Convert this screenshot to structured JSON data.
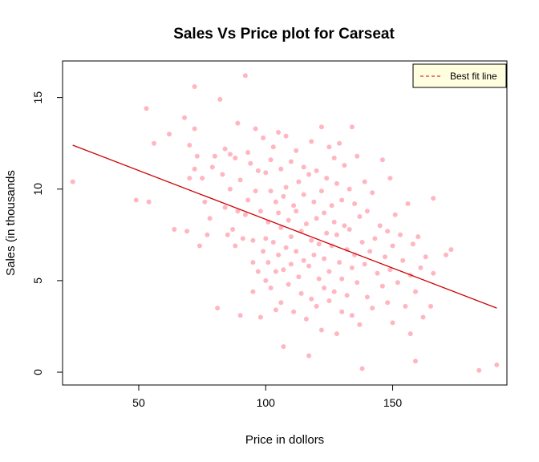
{
  "chart_data": {
    "type": "scatter",
    "title": "Sales Vs Price plot for Carseat",
    "xlabel": "Price in dollors",
    "ylabel": "Sales (in thousands",
    "xlim": [
      20,
      195
    ],
    "ylim": [
      -0.7,
      17.0
    ],
    "xticks": [
      50,
      100,
      150
    ],
    "yticks": [
      0,
      5,
      10,
      15
    ],
    "grid": false,
    "legend": {
      "position": "top-right",
      "entries": [
        {
          "label": "Best fit line",
          "style": "dashed",
          "color": "#cc0000"
        }
      ]
    },
    "colors": {
      "points": "#ffb6c1",
      "fit_line": "#cc0000",
      "legend_bg": "#ffffe0"
    },
    "fit_line": {
      "x": [
        24,
        191
      ],
      "y": [
        12.4,
        3.5
      ]
    },
    "points": [
      [
        24,
        10.4
      ],
      [
        49,
        9.4
      ],
      [
        53,
        14.4
      ],
      [
        54,
        9.3
      ],
      [
        56,
        12.5
      ],
      [
        62,
        13.0
      ],
      [
        64,
        7.8
      ],
      [
        68,
        13.9
      ],
      [
        69,
        7.7
      ],
      [
        70,
        12.4
      ],
      [
        70,
        10.6
      ],
      [
        72,
        15.6
      ],
      [
        72,
        13.3
      ],
      [
        72,
        11.1
      ],
      [
        73,
        11.8
      ],
      [
        74,
        6.9
      ],
      [
        75,
        10.6
      ],
      [
        76,
        9.3
      ],
      [
        77,
        7.5
      ],
      [
        78,
        8.4
      ],
      [
        79,
        11.2
      ],
      [
        80,
        11.8
      ],
      [
        81,
        3.5
      ],
      [
        82,
        14.9
      ],
      [
        83,
        10.8
      ],
      [
        84,
        12.2
      ],
      [
        84,
        9.0
      ],
      [
        85,
        7.5
      ],
      [
        86,
        11.9
      ],
      [
        86,
        10.0
      ],
      [
        87,
        7.8
      ],
      [
        88,
        11.7
      ],
      [
        88,
        6.9
      ],
      [
        89,
        13.6
      ],
      [
        89,
        8.8
      ],
      [
        90,
        3.1
      ],
      [
        90,
        10.5
      ],
      [
        91,
        7.3
      ],
      [
        92,
        16.2
      ],
      [
        92,
        8.6
      ],
      [
        93,
        12.0
      ],
      [
        93,
        9.4
      ],
      [
        94,
        11.4
      ],
      [
        95,
        7.2
      ],
      [
        95,
        4.4
      ],
      [
        95,
        6.0
      ],
      [
        96,
        13.3
      ],
      [
        96,
        9.9
      ],
      [
        97,
        11.0
      ],
      [
        97,
        5.5
      ],
      [
        98,
        3.0
      ],
      [
        98,
        8.8
      ],
      [
        99,
        6.6
      ],
      [
        99,
        12.8
      ],
      [
        100,
        10.9
      ],
      [
        100,
        7.3
      ],
      [
        100,
        5.0
      ],
      [
        101,
        8.2
      ],
      [
        101,
        6.0
      ],
      [
        102,
        9.9
      ],
      [
        102,
        11.6
      ],
      [
        102,
        4.6
      ],
      [
        103,
        12.3
      ],
      [
        103,
        7.1
      ],
      [
        104,
        3.4
      ],
      [
        104,
        9.3
      ],
      [
        104,
        5.5
      ],
      [
        105,
        13.1
      ],
      [
        105,
        8.7
      ],
      [
        105,
        6.4
      ],
      [
        106,
        11.1
      ],
      [
        106,
        3.8
      ],
      [
        106,
        7.9
      ],
      [
        107,
        9.6
      ],
      [
        107,
        1.4
      ],
      [
        107,
        5.6
      ],
      [
        108,
        12.9
      ],
      [
        108,
        10.1
      ],
      [
        108,
        6.8
      ],
      [
        109,
        8.3
      ],
      [
        109,
        4.8
      ],
      [
        110,
        11.5
      ],
      [
        110,
        7.4
      ],
      [
        110,
        5.9
      ],
      [
        111,
        9.1
      ],
      [
        111,
        3.3
      ],
      [
        112,
        12.1
      ],
      [
        112,
        6.6
      ],
      [
        112,
        8.8
      ],
      [
        113,
        10.4
      ],
      [
        113,
        5.2
      ],
      [
        114,
        7.7
      ],
      [
        114,
        4.3
      ],
      [
        115,
        9.7
      ],
      [
        115,
        11.2
      ],
      [
        115,
        6.1
      ],
      [
        116,
        8.1
      ],
      [
        116,
        2.9
      ],
      [
        117,
        10.8
      ],
      [
        117,
        5.8
      ],
      [
        117,
        0.9
      ],
      [
        118,
        12.6
      ],
      [
        118,
        7.2
      ],
      [
        118,
        4.0
      ],
      [
        119,
        9.3
      ],
      [
        119,
        6.4
      ],
      [
        120,
        11.0
      ],
      [
        120,
        8.4
      ],
      [
        120,
        3.6
      ],
      [
        121,
        7.0
      ],
      [
        121,
        5.1
      ],
      [
        122,
        13.4
      ],
      [
        122,
        9.9
      ],
      [
        122,
        2.3
      ],
      [
        123,
        8.7
      ],
      [
        123,
        6.2
      ],
      [
        123,
        4.6
      ],
      [
        124,
        10.6
      ],
      [
        124,
        7.6
      ],
      [
        125,
        12.3
      ],
      [
        125,
        5.5
      ],
      [
        125,
        3.9
      ],
      [
        126,
        9.1
      ],
      [
        126,
        6.9
      ],
      [
        127,
        11.7
      ],
      [
        127,
        8.2
      ],
      [
        127,
        4.4
      ],
      [
        128,
        7.5
      ],
      [
        128,
        2.1
      ],
      [
        128,
        10.3
      ],
      [
        129,
        12.5
      ],
      [
        129,
        6.0
      ],
      [
        130,
        9.4
      ],
      [
        130,
        5.1
      ],
      [
        130,
        3.3
      ],
      [
        131,
        8.0
      ],
      [
        131,
        11.3
      ],
      [
        132,
        6.7
      ],
      [
        132,
        4.2
      ],
      [
        133,
        10.0
      ],
      [
        133,
        7.8
      ],
      [
        134,
        13.4
      ],
      [
        134,
        5.7
      ],
      [
        134,
        3.1
      ],
      [
        135,
        9.2
      ],
      [
        135,
        6.4
      ],
      [
        136,
        11.8
      ],
      [
        136,
        4.9
      ],
      [
        137,
        8.5
      ],
      [
        137,
        2.6
      ],
      [
        138,
        7.1
      ],
      [
        138,
        0.2
      ],
      [
        139,
        10.4
      ],
      [
        139,
        5.9
      ],
      [
        140,
        8.8
      ],
      [
        140,
        4.1
      ],
      [
        141,
        6.6
      ],
      [
        142,
        9.8
      ],
      [
        142,
        3.5
      ],
      [
        143,
        7.3
      ],
      [
        144,
        5.4
      ],
      [
        145,
        8.0
      ],
      [
        146,
        11.6
      ],
      [
        146,
        4.7
      ],
      [
        147,
        6.3
      ],
      [
        148,
        7.7
      ],
      [
        148,
        3.8
      ],
      [
        149,
        10.6
      ],
      [
        149,
        5.6
      ],
      [
        150,
        6.9
      ],
      [
        150,
        2.7
      ],
      [
        151,
        8.6
      ],
      [
        152,
        4.9
      ],
      [
        153,
        7.5
      ],
      [
        154,
        6.1
      ],
      [
        155,
        3.6
      ],
      [
        156,
        9.2
      ],
      [
        157,
        5.3
      ],
      [
        157,
        2.1
      ],
      [
        158,
        7.0
      ],
      [
        159,
        0.6
      ],
      [
        159,
        4.4
      ],
      [
        160,
        7.4
      ],
      [
        161,
        5.7
      ],
      [
        162,
        3.0
      ],
      [
        163,
        6.3
      ],
      [
        165,
        3.6
      ],
      [
        166,
        9.5
      ],
      [
        166,
        5.4
      ],
      [
        171,
        6.4
      ],
      [
        173,
        6.7
      ],
      [
        184,
        0.1
      ],
      [
        191,
        0.4
      ]
    ]
  }
}
